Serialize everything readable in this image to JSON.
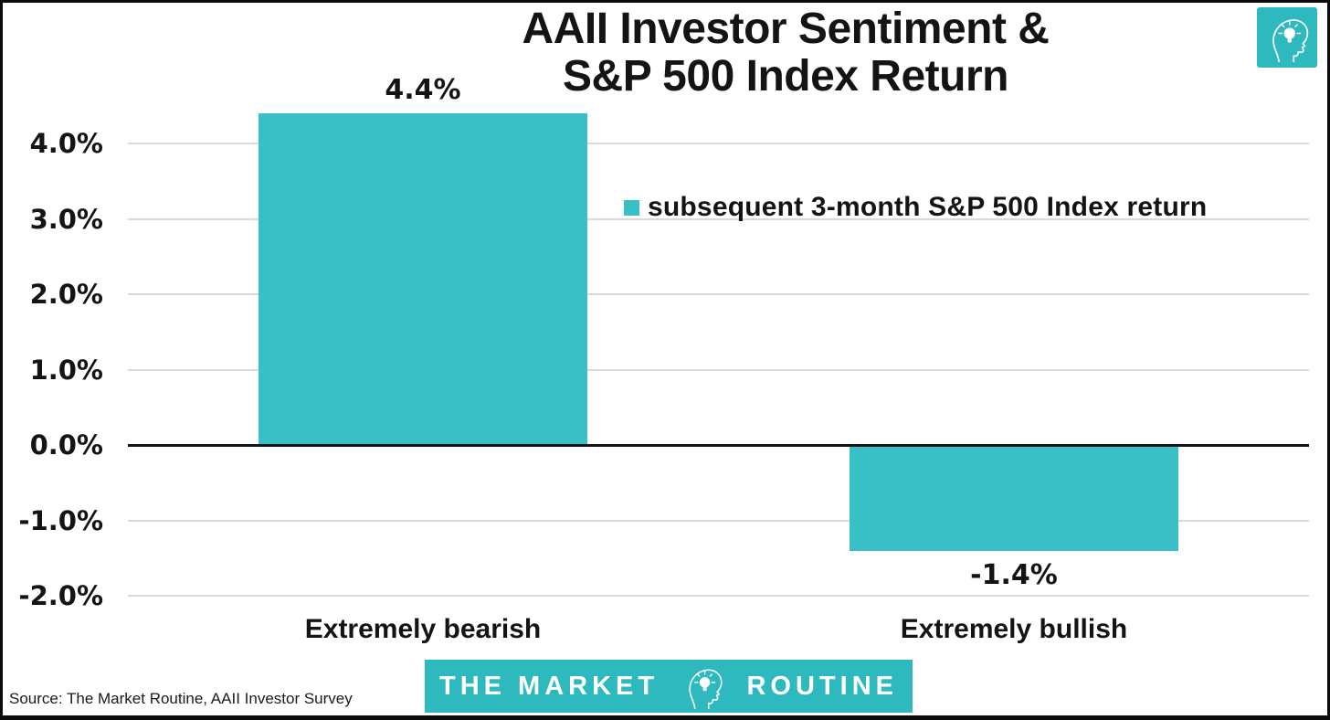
{
  "title": {
    "line1": "AAII Investor Sentiment &",
    "line2": "S&P 500 Index Return"
  },
  "legend": {
    "label": "subsequent 3-month S&P 500 Index return"
  },
  "source_note": "Source: The Market Routine, AAII Investor Survey",
  "banner": {
    "left": "THE MARKET",
    "right": "ROUTINE"
  },
  "icons": {
    "badge": "head-lightbulb-icon",
    "banner": "head-lightbulb-icon",
    "legend_swatch": "teal-square"
  },
  "colors": {
    "bar": "#39c0c6",
    "banner": "#2eb9bf",
    "gridline": "#d9d9d9",
    "zero_line": "#141414",
    "text": "#141414"
  },
  "chart_data": {
    "type": "bar",
    "title": "AAII Investor Sentiment & S&P 500 Index Return",
    "categories": [
      "Extremely bearish",
      "Extremely bullish"
    ],
    "series": [
      {
        "name": "subsequent 3-month S&P 500 Index return",
        "values": [
          4.4,
          -1.4
        ]
      }
    ],
    "value_labels": [
      "4.4%",
      "-1.4%"
    ],
    "yticks": [
      {
        "value": 4.0,
        "label": "4.0%"
      },
      {
        "value": 3.0,
        "label": "3.0%"
      },
      {
        "value": 2.0,
        "label": "2.0%"
      },
      {
        "value": 1.0,
        "label": "1.0%"
      },
      {
        "value": 0.0,
        "label": "0.0%"
      },
      {
        "value": -1.0,
        "label": "-1.0%"
      },
      {
        "value": -2.0,
        "label": "-2.0%"
      }
    ],
    "ylim": [
      -2.4,
      4.6
    ],
    "grid": true,
    "legend_position": "center-right",
    "bar_color": "#39c0c6"
  }
}
